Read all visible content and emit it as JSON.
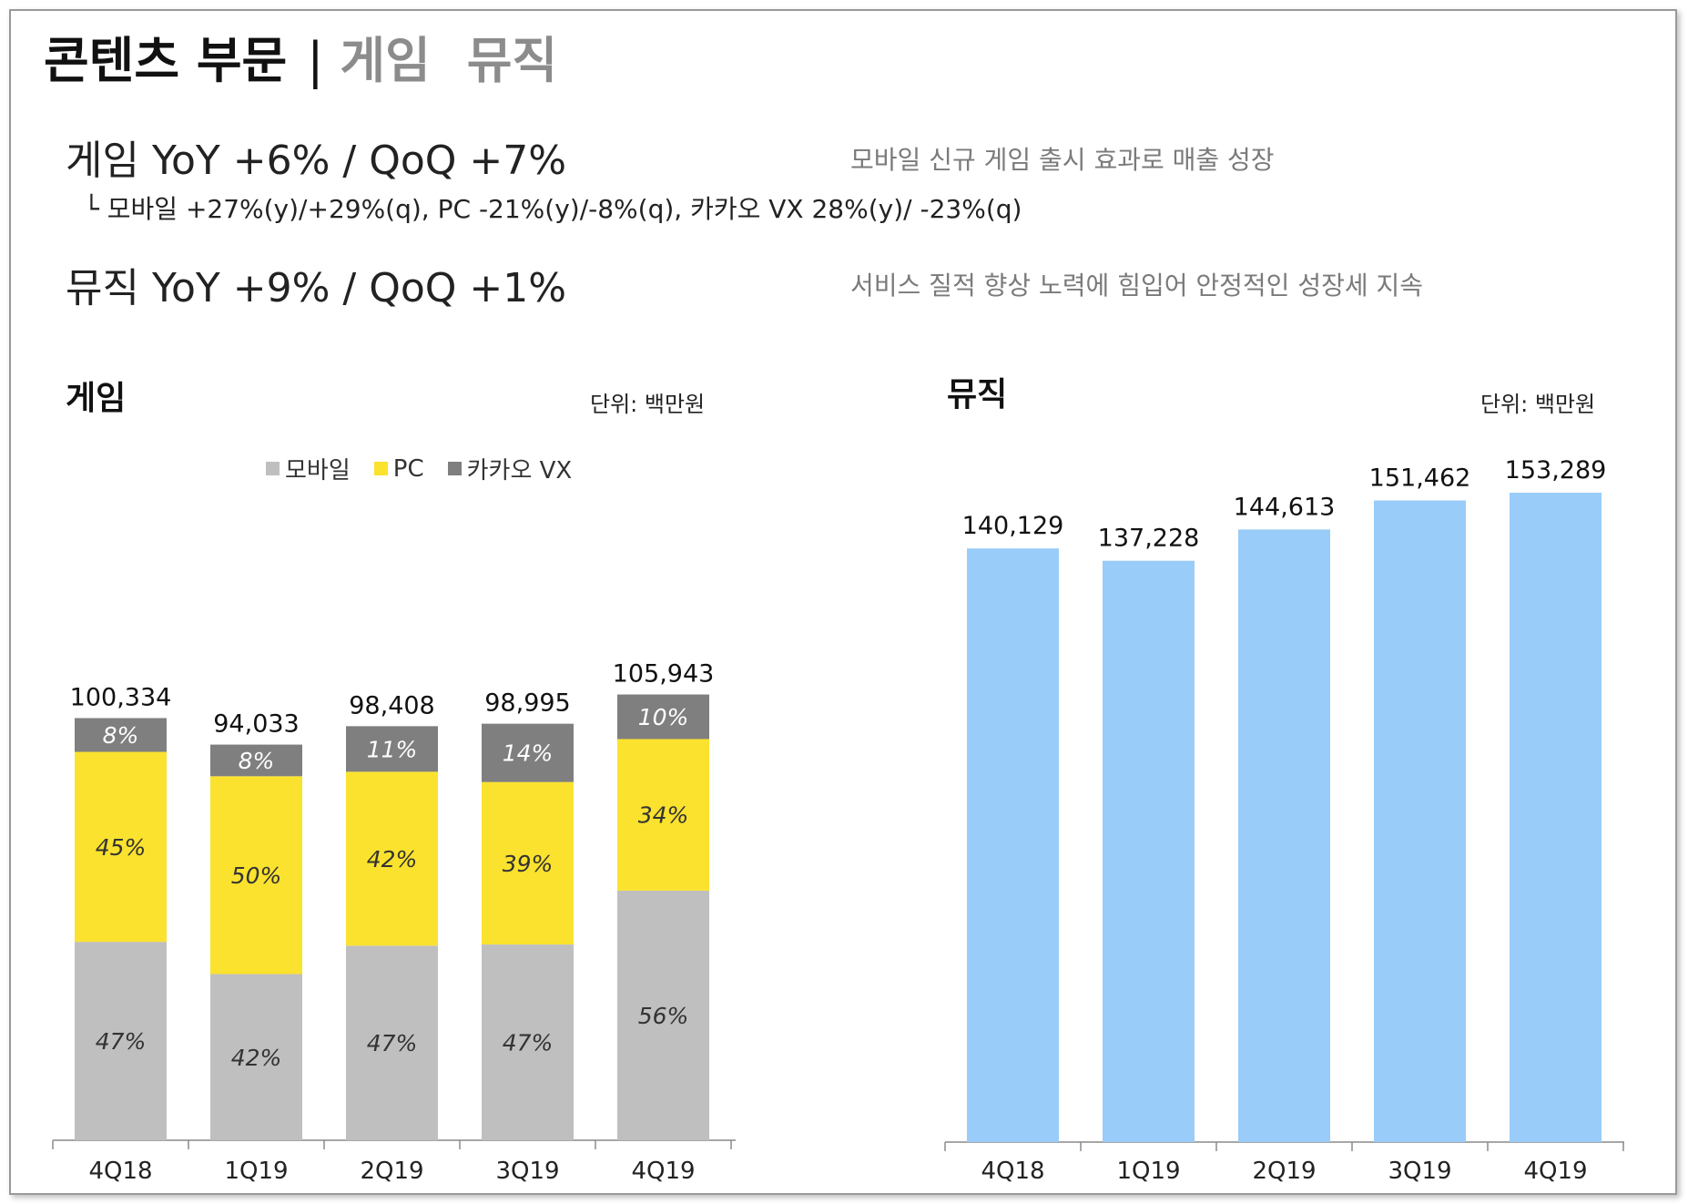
{
  "header": {
    "title_main": "콘텐츠 부문",
    "separator": "|",
    "title_sub_1": "게임",
    "title_sub_2": "뮤직"
  },
  "summary": {
    "game_headline": "게임  YoY +6% / QoQ +7%",
    "game_note": "모바일 신규 게임 출시 효과로 매출 성장",
    "game_detail": "└ 모바일  +27%(y)/+29%(q), PC  -21%(y)/-8%(q), 카카오 VX  28%(y)/ -23%(q)",
    "music_headline": "뮤직  YoY +9% / QoQ +1%",
    "music_note": "서비스 질적 향상 노력에 힘입어 안정적인 성장세 지속"
  },
  "colors": {
    "mobile": "#bfbfbf",
    "pc": "#fbe22e",
    "vx": "#7f7f7f",
    "music": "#99ccf8"
  },
  "chart_data": [
    {
      "type": "bar",
      "stacked": true,
      "title": "게임",
      "unit": "단위: 백만원",
      "categories": [
        "4Q18",
        "1Q19",
        "2Q19",
        "3Q19",
        "4Q19"
      ],
      "totals": [
        100334,
        94033,
        98408,
        98995,
        105943
      ],
      "total_labels": [
        "100,334",
        "94,033",
        "98,408",
        "98,995",
        "105,943"
      ],
      "legend": [
        "모바일",
        "PC",
        "카카오 VX"
      ],
      "series": [
        {
          "name": "모바일",
          "share_pct": [
            47,
            42,
            47,
            47,
            56
          ],
          "labels": [
            "47%",
            "42%",
            "47%",
            "47%",
            "56%"
          ]
        },
        {
          "name": "PC",
          "share_pct": [
            45,
            50,
            42,
            39,
            34
          ],
          "labels": [
            "45%",
            "50%",
            "42%",
            "39%",
            "34%"
          ]
        },
        {
          "name": "카카오 VX",
          "share_pct": [
            8,
            8,
            11,
            14,
            10
          ],
          "labels": [
            "8%",
            "8%",
            "11%",
            "14%",
            "10%"
          ]
        }
      ],
      "legend_position": "top",
      "grid": false
    },
    {
      "type": "bar",
      "title": "뮤직",
      "unit": "단위: 백만원",
      "categories": [
        "4Q18",
        "1Q19",
        "2Q19",
        "3Q19",
        "4Q19"
      ],
      "values": [
        140129,
        137228,
        144613,
        151462,
        153289
      ],
      "value_labels": [
        "140,129",
        "137,228",
        "144,613",
        "151,462",
        "153,289"
      ],
      "grid": false
    }
  ]
}
